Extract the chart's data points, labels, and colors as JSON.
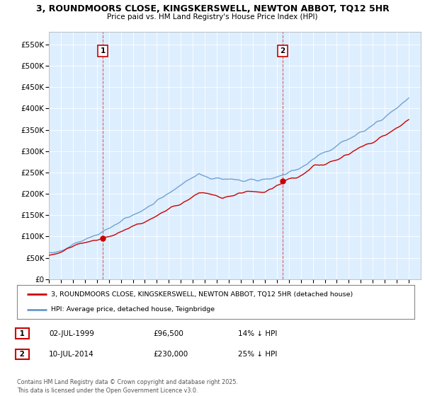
{
  "title_line1": "3, ROUNDMOORS CLOSE, KINGSKERSWELL, NEWTON ABBOT, TQ12 5HR",
  "title_line2": "Price paid vs. HM Land Registry's House Price Index (HPI)",
  "ylim": [
    0,
    580000
  ],
  "yticks": [
    0,
    50000,
    100000,
    150000,
    200000,
    250000,
    300000,
    350000,
    400000,
    450000,
    500000,
    550000
  ],
  "ytick_labels": [
    "£0",
    "£50K",
    "£100K",
    "£150K",
    "£200K",
    "£250K",
    "£300K",
    "£350K",
    "£400K",
    "£450K",
    "£500K",
    "£550K"
  ],
  "purchase1_year": 1999.5,
  "purchase1_price": 96500,
  "purchase2_year": 2014.5,
  "purchase2_price": 230000,
  "legend_line1": "3, ROUNDMOORS CLOSE, KINGSKERSWELL, NEWTON ABBOT, TQ12 5HR (detached house)",
  "legend_line2": "HPI: Average price, detached house, Teignbridge",
  "annotation1_date": "02-JUL-1999",
  "annotation1_price": "£96,500",
  "annotation1_pct": "14% ↓ HPI",
  "annotation2_date": "10-JUL-2014",
  "annotation2_price": "£230,000",
  "annotation2_pct": "25% ↓ HPI",
  "footer": "Contains HM Land Registry data © Crown copyright and database right 2025.\nThis data is licensed under the Open Government Licence v3.0.",
  "red_color": "#cc0000",
  "blue_color": "#6699cc",
  "plot_bg_color": "#ddeeff",
  "background_color": "#ffffff",
  "grid_color": "#ffffff"
}
